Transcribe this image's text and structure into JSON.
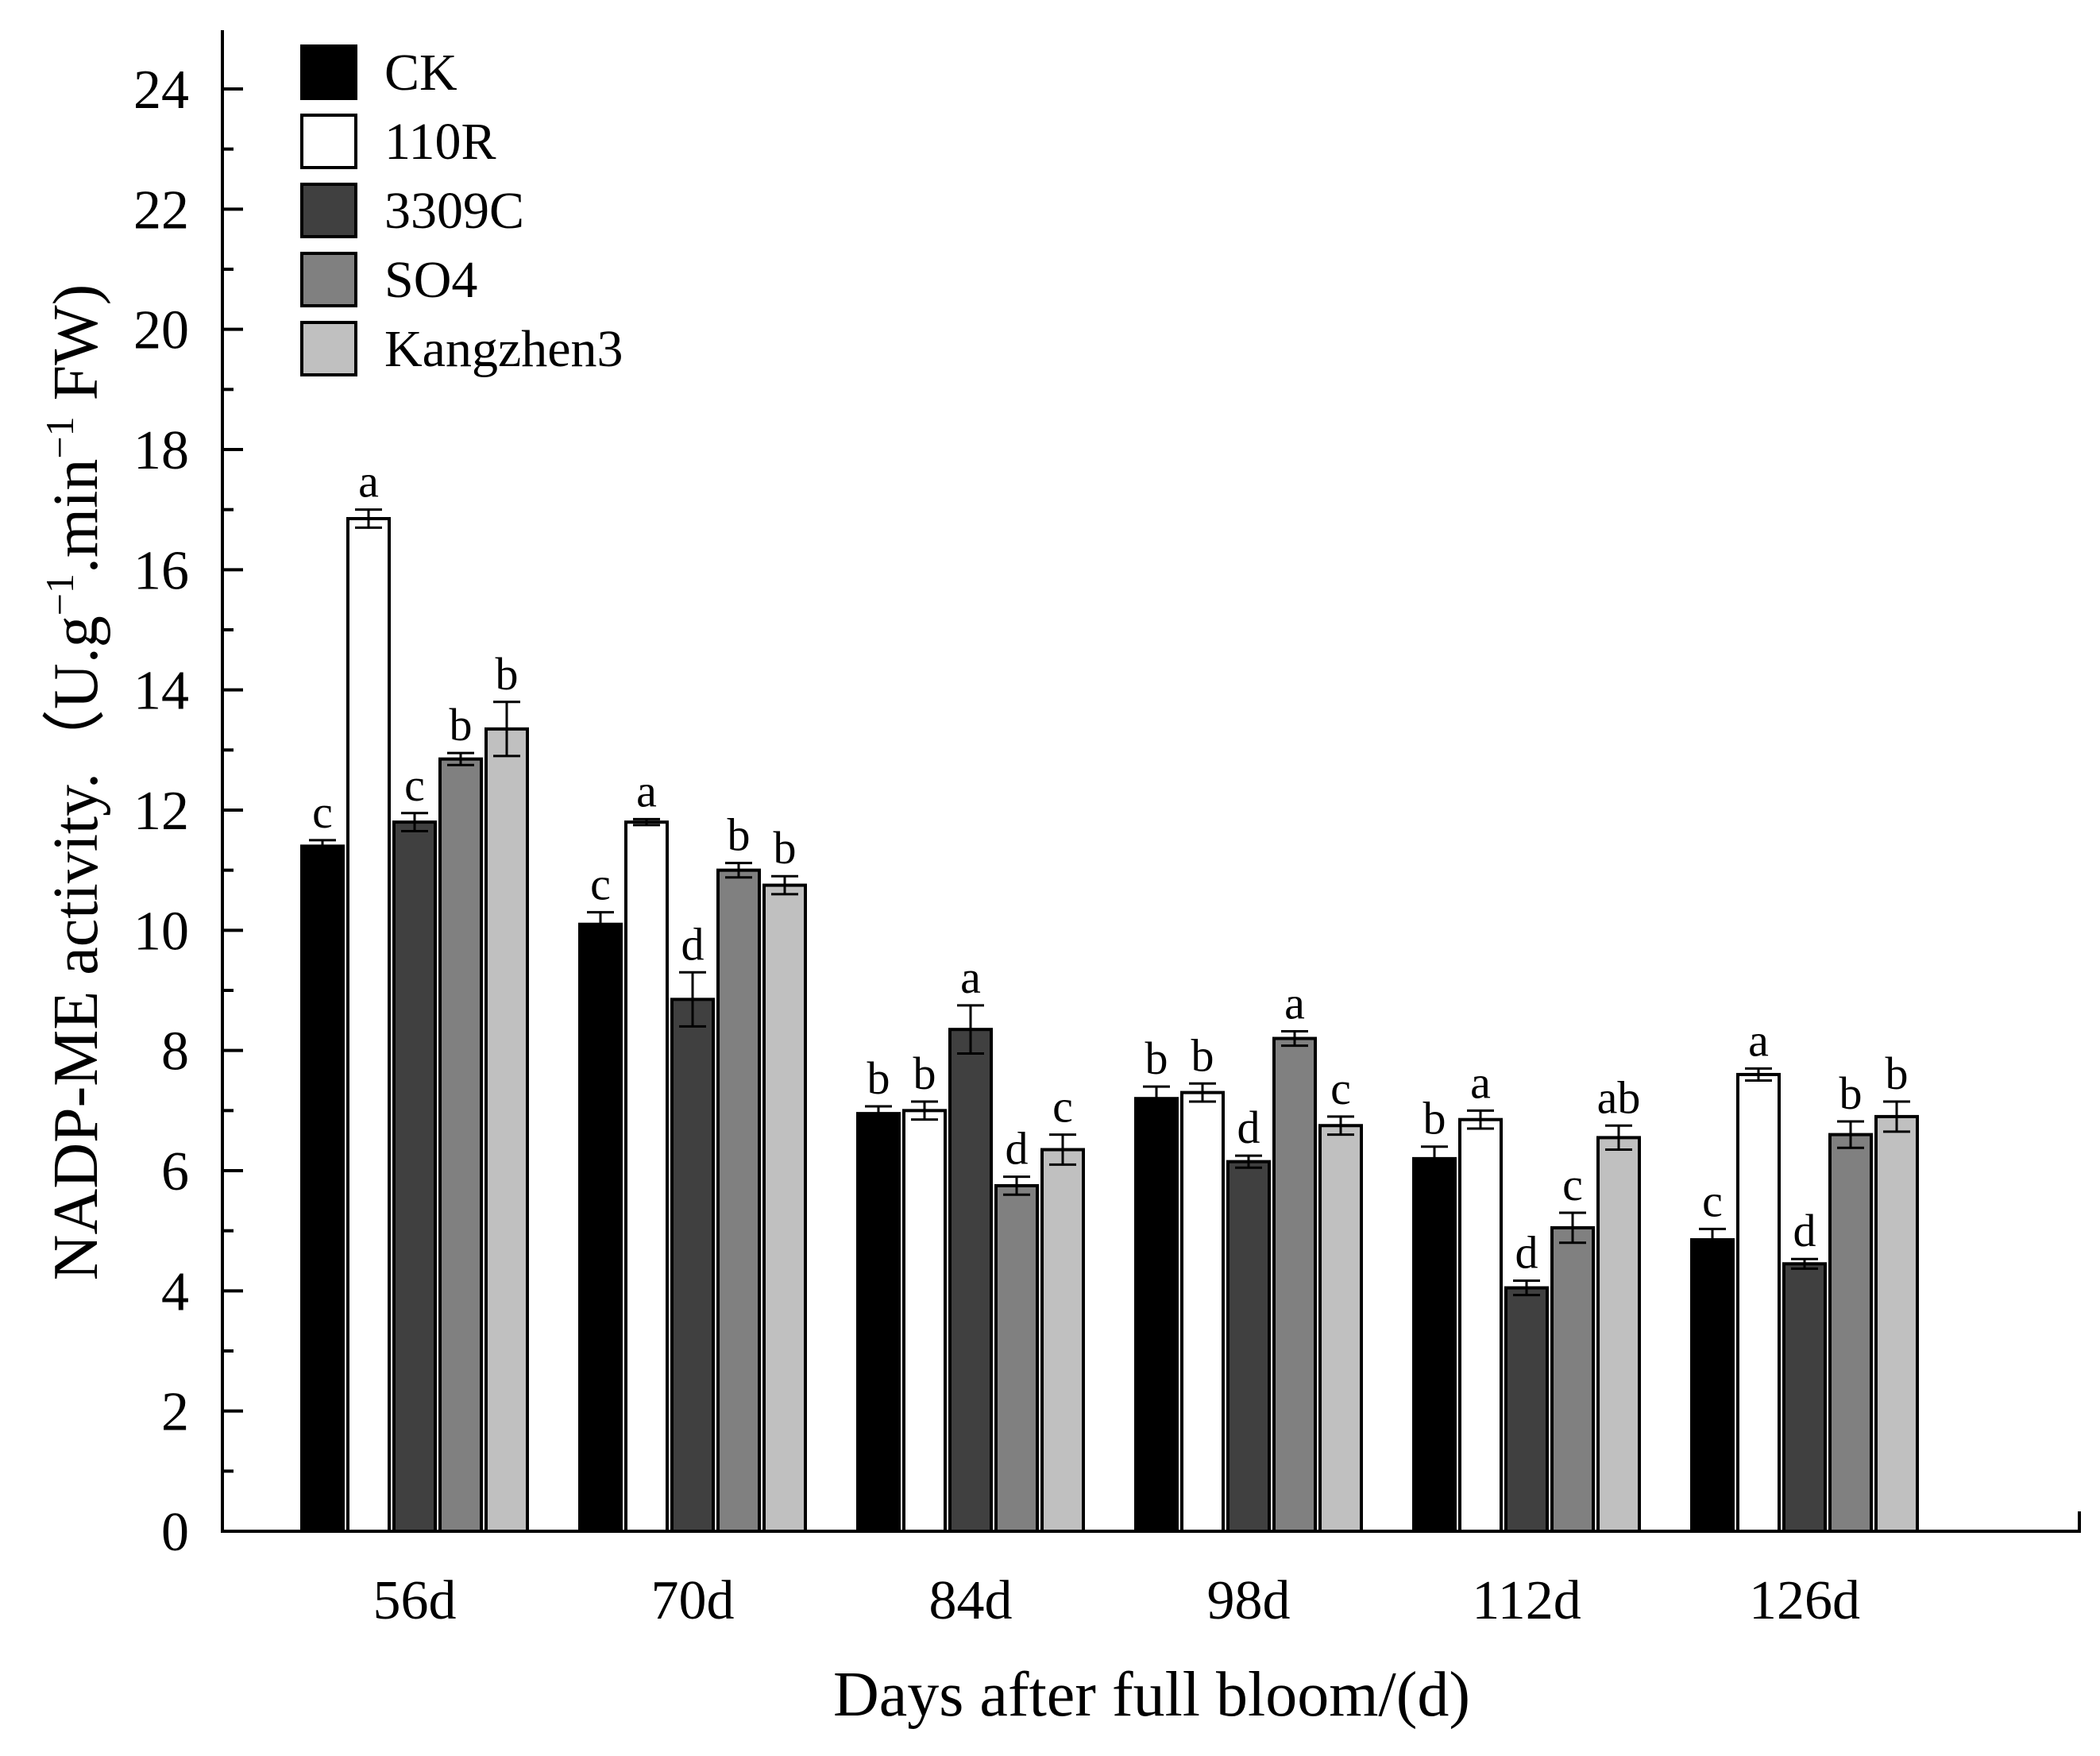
{
  "chart_data": {
    "type": "bar",
    "title": "",
    "xlabel": "Days after full bloom/(d)",
    "ylabel_parts": [
      "NADP-ME activity.（U.g",
      "−1",
      ".min",
      "−1",
      " FW)"
    ],
    "ylim": [
      0,
      25
    ],
    "yticks": [
      0,
      2,
      4,
      6,
      8,
      10,
      12,
      14,
      16,
      18,
      20,
      22,
      24
    ],
    "categories": [
      "56d",
      "70d",
      "84d",
      "98d",
      "112d",
      "126d"
    ],
    "legend_position": "top-left",
    "series": [
      {
        "name": "CK",
        "color": "#000000",
        "values": [
          11.4,
          10.1,
          6.95,
          7.2,
          6.2,
          4.85
        ],
        "errors": [
          0.1,
          0.2,
          0.12,
          0.2,
          0.2,
          0.18
        ],
        "letters": [
          "c",
          "c",
          "b",
          "b",
          "b",
          "c"
        ]
      },
      {
        "name": "110R",
        "color": "#ffffff",
        "values": [
          16.85,
          11.8,
          7.0,
          7.3,
          6.85,
          7.6
        ],
        "errors": [
          0.15,
          0.05,
          0.15,
          0.15,
          0.15,
          0.1
        ],
        "letters": [
          "a",
          "a",
          "b",
          "b",
          "a",
          "a"
        ]
      },
      {
        "name": "3309C",
        "color": "#404040",
        "values": [
          11.8,
          8.85,
          8.35,
          6.15,
          4.05,
          4.45
        ],
        "errors": [
          0.15,
          0.45,
          0.4,
          0.1,
          0.12,
          0.08
        ],
        "letters": [
          "c",
          "d",
          "a",
          "d",
          "d",
          "d"
        ]
      },
      {
        "name": "SO4",
        "color": "#808080",
        "values": [
          12.85,
          11.0,
          5.75,
          8.2,
          5.05,
          6.6
        ],
        "errors": [
          0.1,
          0.12,
          0.15,
          0.12,
          0.25,
          0.22
        ],
        "letters": [
          "b",
          "b",
          "d",
          "a",
          "c",
          "b"
        ]
      },
      {
        "name": "Kangzhen3",
        "color": "#c0c0c0",
        "values": [
          13.35,
          10.75,
          6.35,
          6.75,
          6.55,
          6.9
        ],
        "errors": [
          0.45,
          0.15,
          0.25,
          0.15,
          0.2,
          0.25
        ],
        "letters": [
          "b",
          "b",
          "c",
          "c",
          "ab",
          "b"
        ]
      }
    ]
  }
}
